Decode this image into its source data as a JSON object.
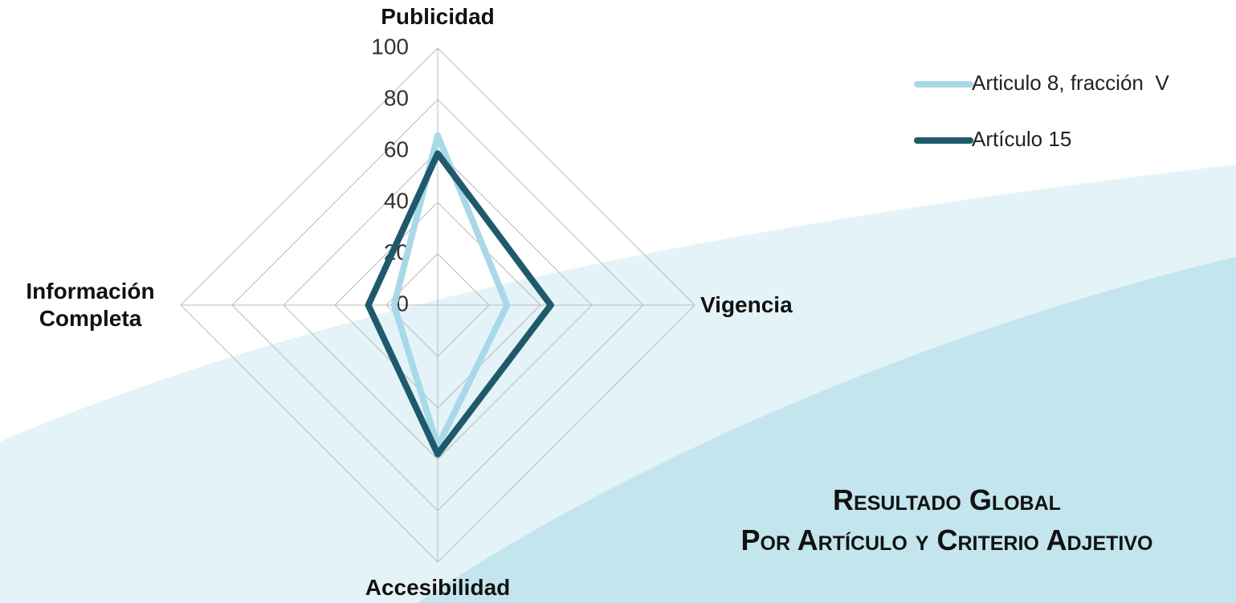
{
  "chart_data": {
    "type": "radar",
    "title": "Resultado Global",
    "subtitle": "Por Artículo y Criterio Adjetivo",
    "categories": [
      "Publicidad",
      "Vigencia",
      "Accesibilidad",
      "Información Completa"
    ],
    "series": [
      {
        "name": "Articulo 8, fracción  V",
        "color": "#a9d9e8",
        "values": [
          66,
          27,
          55,
          17
        ]
      },
      {
        "name": "Artículo 15",
        "color": "#1e5a6b",
        "values": [
          59,
          44,
          58,
          27
        ]
      }
    ],
    "ylim": [
      0,
      100
    ],
    "yticks": [
      0,
      20,
      40,
      60,
      80,
      100
    ],
    "grid": true,
    "legend": "top-right"
  }
}
